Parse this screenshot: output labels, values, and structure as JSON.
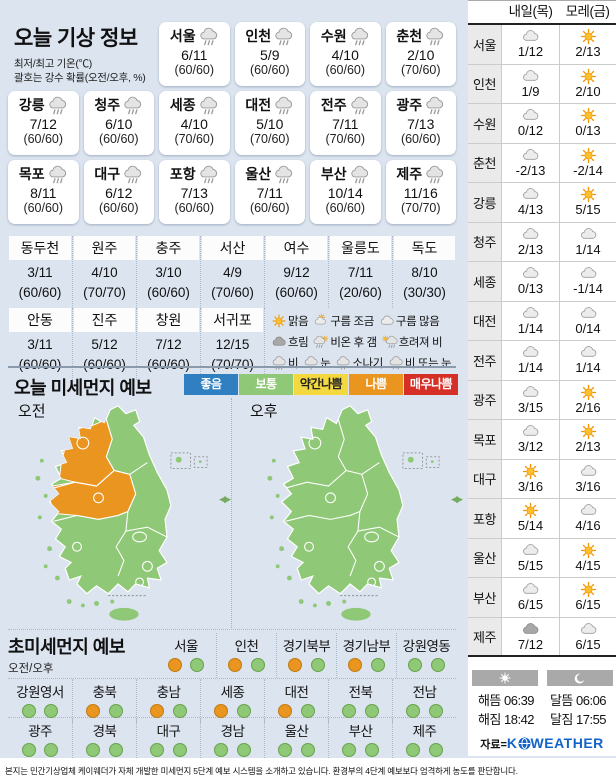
{
  "header": {
    "title": "오늘 기상 정보",
    "subtitle_line1": "최저/최고 기온(℃)",
    "subtitle_line2": "괄호는 강수 확률(오전/오후, %)"
  },
  "today_cards": [
    {
      "name": "서울",
      "icon": "rain",
      "temp": "6/11",
      "prob": "(60/60)"
    },
    {
      "name": "인천",
      "icon": "rain",
      "temp": "5/9",
      "prob": "(60/60)"
    },
    {
      "name": "수원",
      "icon": "rain",
      "temp": "4/10",
      "prob": "(60/60)"
    },
    {
      "name": "춘천",
      "icon": "rain",
      "temp": "2/10",
      "prob": "(70/60)"
    },
    {
      "name": "강릉",
      "icon": "rain",
      "temp": "7/12",
      "prob": "(60/60)"
    },
    {
      "name": "청주",
      "icon": "rain",
      "temp": "6/10",
      "prob": "(60/60)"
    },
    {
      "name": "세종",
      "icon": "rain",
      "temp": "4/10",
      "prob": "(70/60)"
    },
    {
      "name": "대전",
      "icon": "rain",
      "temp": "5/10",
      "prob": "(70/60)"
    },
    {
      "name": "전주",
      "icon": "rain",
      "temp": "7/11",
      "prob": "(70/60)"
    },
    {
      "name": "광주",
      "icon": "rain",
      "temp": "7/13",
      "prob": "(60/60)"
    },
    {
      "name": "목포",
      "icon": "rain",
      "temp": "8/11",
      "prob": "(60/60)"
    },
    {
      "name": "대구",
      "icon": "rain",
      "temp": "6/12",
      "prob": "(60/60)"
    },
    {
      "name": "포항",
      "icon": "rain",
      "temp": "7/13",
      "prob": "(60/60)"
    },
    {
      "name": "울산",
      "icon": "rain",
      "temp": "7/11",
      "prob": "(60/60)"
    },
    {
      "name": "부산",
      "icon": "rain",
      "temp": "10/14",
      "prob": "(60/60)"
    },
    {
      "name": "제주",
      "icon": "rain",
      "temp": "11/16",
      "prob": "(70/70)"
    }
  ],
  "extra_cities": {
    "row1": [
      {
        "name": "동두천",
        "temp": "3/11",
        "prob": "(60/60)"
      },
      {
        "name": "원주",
        "temp": "4/10",
        "prob": "(70/70)"
      },
      {
        "name": "충주",
        "temp": "3/10",
        "prob": "(60/60)"
      },
      {
        "name": "서산",
        "temp": "4/9",
        "prob": "(70/60)"
      },
      {
        "name": "여수",
        "temp": "9/12",
        "prob": "(60/60)"
      },
      {
        "name": "울릉도",
        "temp": "7/11",
        "prob": "(20/60)"
      },
      {
        "name": "독도",
        "temp": "8/10",
        "prob": "(30/30)"
      }
    ],
    "row2": [
      {
        "name": "안동",
        "temp": "3/11",
        "prob": "(60/60)"
      },
      {
        "name": "진주",
        "temp": "5/12",
        "prob": "(60/60)"
      },
      {
        "name": "창원",
        "temp": "7/12",
        "prob": "(60/60)"
      },
      {
        "name": "서귀포",
        "temp": "12/15",
        "prob": "(70/70)"
      }
    ]
  },
  "symbol_legend": [
    [
      {
        "icon": "sun",
        "label": "맑음"
      },
      {
        "icon": "partly",
        "label": "구름 조금"
      },
      {
        "icon": "cloud",
        "label": "구름 많음"
      }
    ],
    [
      {
        "icon": "darkcloud",
        "label": "흐림"
      },
      {
        "icon": "rainthensun",
        "label": "비온 후 갬"
      },
      {
        "icon": "suntorain",
        "label": "흐려져 비"
      }
    ],
    [
      {
        "icon": "rain",
        "label": "비"
      },
      {
        "icon": "snow",
        "label": "눈"
      },
      {
        "icon": "shower",
        "label": "소나기"
      },
      {
        "icon": "rainorsnow",
        "label": "비 또는 눈"
      }
    ]
  ],
  "dust": {
    "title": "오늘 미세먼지 예보",
    "levels": [
      {
        "label": "좋음",
        "color": "#2f7fc1",
        "text_color": "#ffffff"
      },
      {
        "label": "보통",
        "color": "#8fc876",
        "text_color": "#ffffff"
      },
      {
        "label": "약간나쁨",
        "color": "#f3d83f",
        "text_color": "#222222"
      },
      {
        "label": "나쁨",
        "color": "#e9951f",
        "text_color": "#ffffff"
      },
      {
        "label": "매우나쁨",
        "color": "#d52f27",
        "text_color": "#ffffff"
      }
    ],
    "maps": [
      {
        "label": "오전",
        "orange_regions": true
      },
      {
        "label": "오후",
        "orange_regions": false
      }
    ],
    "map_colors": {
      "good_green": "#8fc876",
      "bad_orange": "#e9951f"
    }
  },
  "ultrafine": {
    "title": "초미세먼지 예보",
    "sublabel": "오전/오후",
    "level_colors": {
      "나쁨": "#e9951f",
      "보통": "#8fc876"
    },
    "rows": [
      [
        {
          "name": "서울",
          "am": "나쁨",
          "pm": "보통"
        },
        {
          "name": "인천",
          "am": "나쁨",
          "pm": "보통"
        },
        {
          "name": "경기북부",
          "am": "나쁨",
          "pm": "보통"
        },
        {
          "name": "경기남부",
          "am": "나쁨",
          "pm": "보통"
        },
        {
          "name": "강원영동",
          "am": "보통",
          "pm": "보통"
        }
      ],
      [
        {
          "name": "강원영서",
          "am": "보통",
          "pm": "보통"
        },
        {
          "name": "충북",
          "am": "나쁨",
          "pm": "보통"
        },
        {
          "name": "충남",
          "am": "나쁨",
          "pm": "보통"
        },
        {
          "name": "세종",
          "am": "나쁨",
          "pm": "보통"
        },
        {
          "name": "대전",
          "am": "나쁨",
          "pm": "보통"
        },
        {
          "name": "전북",
          "am": "보통",
          "pm": "보통"
        },
        {
          "name": "전남",
          "am": "보통",
          "pm": "보통"
        }
      ],
      [
        {
          "name": "광주",
          "am": "보통",
          "pm": "보통"
        },
        {
          "name": "경북",
          "am": "보통",
          "pm": "보통"
        },
        {
          "name": "대구",
          "am": "보통",
          "pm": "보통"
        },
        {
          "name": "경남",
          "am": "보통",
          "pm": "보통"
        },
        {
          "name": "울산",
          "am": "보통",
          "pm": "보통"
        },
        {
          "name": "부산",
          "am": "보통",
          "pm": "보통"
        },
        {
          "name": "제주",
          "am": "보통",
          "pm": "보통"
        }
      ]
    ]
  },
  "forecast_table": {
    "col_tomorrow": "내일(목)",
    "col_dayafter": "모레(금)",
    "rows": [
      {
        "city": "서울",
        "tomorrow": {
          "icon": "cloud",
          "temp": "1/12"
        },
        "dayafter": {
          "icon": "sun",
          "temp": "2/13"
        }
      },
      {
        "city": "인천",
        "tomorrow": {
          "icon": "cloud",
          "temp": "1/9"
        },
        "dayafter": {
          "icon": "sun",
          "temp": "2/10"
        }
      },
      {
        "city": "수원",
        "tomorrow": {
          "icon": "cloud",
          "temp": "0/12"
        },
        "dayafter": {
          "icon": "sun",
          "temp": "0/13"
        }
      },
      {
        "city": "춘천",
        "tomorrow": {
          "icon": "cloud",
          "temp": "-2/13"
        },
        "dayafter": {
          "icon": "sun",
          "temp": "-2/14"
        }
      },
      {
        "city": "강릉",
        "tomorrow": {
          "icon": "cloud",
          "temp": "4/13"
        },
        "dayafter": {
          "icon": "sun",
          "temp": "5/15"
        }
      },
      {
        "city": "청주",
        "tomorrow": {
          "icon": "cloud",
          "temp": "2/13"
        },
        "dayafter": {
          "icon": "cloud",
          "temp": "1/14"
        }
      },
      {
        "city": "세종",
        "tomorrow": {
          "icon": "cloud",
          "temp": "0/13"
        },
        "dayafter": {
          "icon": "cloud",
          "temp": "-1/14"
        }
      },
      {
        "city": "대전",
        "tomorrow": {
          "icon": "cloud",
          "temp": "1/14"
        },
        "dayafter": {
          "icon": "cloud",
          "temp": "0/14"
        }
      },
      {
        "city": "전주",
        "tomorrow": {
          "icon": "cloud",
          "temp": "1/14"
        },
        "dayafter": {
          "icon": "cloud",
          "temp": "1/14"
        }
      },
      {
        "city": "광주",
        "tomorrow": {
          "icon": "cloud",
          "temp": "3/15"
        },
        "dayafter": {
          "icon": "sun",
          "temp": "2/16"
        }
      },
      {
        "city": "목포",
        "tomorrow": {
          "icon": "cloud",
          "temp": "3/12"
        },
        "dayafter": {
          "icon": "sun",
          "temp": "2/13"
        }
      },
      {
        "city": "대구",
        "tomorrow": {
          "icon": "sun",
          "temp": "3/16"
        },
        "dayafter": {
          "icon": "cloud",
          "temp": "3/16"
        }
      },
      {
        "city": "포항",
        "tomorrow": {
          "icon": "sun",
          "temp": "5/14"
        },
        "dayafter": {
          "icon": "cloud",
          "temp": "4/16"
        }
      },
      {
        "city": "울산",
        "tomorrow": {
          "icon": "cloud",
          "temp": "5/15"
        },
        "dayafter": {
          "icon": "sun",
          "temp": "4/15"
        }
      },
      {
        "city": "부산",
        "tomorrow": {
          "icon": "cloud",
          "temp": "6/15"
        },
        "dayafter": {
          "icon": "sun",
          "temp": "6/15"
        }
      },
      {
        "city": "제주",
        "tomorrow": {
          "icon": "darkcloud",
          "temp": "7/12"
        },
        "dayafter": {
          "icon": "cloud",
          "temp": "6/15"
        }
      }
    ]
  },
  "suntimes": {
    "sunrise_label": "해뜸",
    "sunrise": "06:39",
    "sunset_label": "해짐",
    "sunset": "18:42",
    "moonrise_label": "달뜸",
    "moonrise": "06:06",
    "moonset_label": "달짐",
    "moonset": "17:55"
  },
  "source": {
    "label": "자료=",
    "brand_k": "K",
    "brand_rest": "WEATHER",
    "brand_color": "#1464c8"
  },
  "footer": {
    "text": "본지는 민간기상업체 케이웨더가 자체 개발한 미세먼지 5단계 예보 시스템을 소개하고 있습니다. 환경부의 4단계 예보보다 엄격하게 농도를 판단합니다."
  }
}
